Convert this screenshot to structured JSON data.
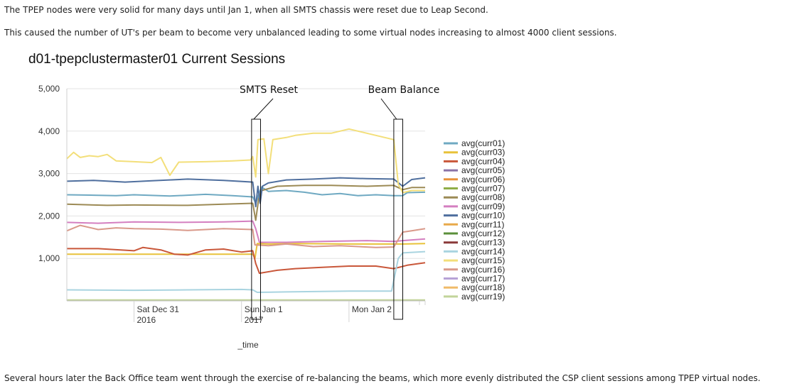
{
  "text": {
    "intro_1": "The TPEP nodes were very solid for many days until Jan 1, when all SMTS chassis were reset due to Leap Second.",
    "intro_2": "This caused the number of UT's per beam to become very unbalanced leading to some virtual nodes increasing to almost 4000 client sessions.",
    "outro": "Several hours later the Back Office team went through the exercise of re-balancing the beams, which more evenly distributed the CSP client sessions among TPEP virtual nodes."
  },
  "chart_data": {
    "type": "line",
    "title": "d01-tpepclustermaster01 Current Sessions",
    "xlabel": "_time",
    "ylabel": "",
    "ylim": [
      0,
      5000
    ],
    "xlim": [
      "2016-12-30T09:00",
      "2017-01-02T17:00"
    ],
    "y_ticks": [
      {
        "value": 1000,
        "label": "1,000"
      },
      {
        "value": 2000,
        "label": "2,000"
      },
      {
        "value": 3000,
        "label": "3,000"
      },
      {
        "value": 4000,
        "label": "4,000"
      },
      {
        "value": 5000,
        "label": "5,000"
      }
    ],
    "x_ticks": [
      {
        "value": "2016-12-31T00:00",
        "label": [
          "Sat Dec 31",
          "2016"
        ]
      },
      {
        "value": "2017-01-01T00:00",
        "label": [
          "Sun Jan 1",
          "2017"
        ]
      },
      {
        "value": "2017-01-02T00:00",
        "label": [
          "Mon Jan 2",
          ""
        ]
      }
    ],
    "grid": {
      "horizontal": true,
      "vertical": false
    },
    "legend": {
      "placement": "right"
    },
    "annotations": [
      {
        "label": "SMTS Reset",
        "x_range": [
          "2017-01-01T02:15",
          "2017-01-01T04:15"
        ]
      },
      {
        "label": "Beam Balance",
        "x_range": [
          "2017-01-02T10:00",
          "2017-01-02T12:00"
        ]
      }
    ],
    "series": [
      {
        "name": "avg(curr01)",
        "color": "#6fa9c2",
        "points": [
          [
            "2016-12-30T09:00",
            2500
          ],
          [
            "2016-12-30T15:00",
            2490
          ],
          [
            "2016-12-30T20:00",
            2480
          ],
          [
            "2016-12-31T00:00",
            2500
          ],
          [
            "2016-12-31T08:00",
            2470
          ],
          [
            "2016-12-31T16:00",
            2510
          ],
          [
            "2016-12-31T22:00",
            2480
          ],
          [
            "2017-01-01T02:30",
            2450
          ],
          [
            "2017-01-01T03:10",
            2300
          ],
          [
            "2017-01-01T03:40",
            2450
          ],
          [
            "2017-01-01T04:30",
            2680
          ],
          [
            "2017-01-01T06:00",
            2580
          ],
          [
            "2017-01-01T10:00",
            2600
          ],
          [
            "2017-01-01T14:00",
            2560
          ],
          [
            "2017-01-01T18:00",
            2500
          ],
          [
            "2017-01-01T22:00",
            2530
          ],
          [
            "2017-01-02T02:00",
            2480
          ],
          [
            "2017-01-02T06:00",
            2500
          ],
          [
            "2017-01-02T10:00",
            2480
          ],
          [
            "2017-01-02T12:00",
            2480
          ],
          [
            "2017-01-02T13:00",
            2550
          ],
          [
            "2017-01-02T17:00",
            2560
          ]
        ]
      },
      {
        "name": "avg(curr03)",
        "color": "#e8c23a",
        "points": [
          [
            "2016-12-30T09:00",
            1100
          ],
          [
            "2016-12-31T00:00",
            1100
          ],
          [
            "2017-01-01T00:00",
            1100
          ],
          [
            "2017-01-01T02:30",
            1100
          ],
          [
            "2017-01-01T03:00",
            1000
          ],
          [
            "2017-01-01T03:30",
            1350
          ],
          [
            "2017-01-01T06:00",
            1340
          ],
          [
            "2017-01-01T12:00",
            1350
          ],
          [
            "2017-01-02T00:00",
            1340
          ],
          [
            "2017-01-02T10:00",
            1340
          ],
          [
            "2017-01-02T12:00",
            1340
          ],
          [
            "2017-01-02T17:00",
            1350
          ]
        ]
      },
      {
        "name": "avg(curr04)",
        "color": "#c9573a",
        "points": [
          [
            "2016-12-30T09:00",
            1230
          ],
          [
            "2016-12-30T16:00",
            1230
          ],
          [
            "2016-12-31T00:00",
            1180
          ],
          [
            "2016-12-31T02:00",
            1260
          ],
          [
            "2016-12-31T06:00",
            1200
          ],
          [
            "2016-12-31T09:00",
            1100
          ],
          [
            "2016-12-31T12:00",
            1080
          ],
          [
            "2016-12-31T16:00",
            1200
          ],
          [
            "2016-12-31T20:00",
            1220
          ],
          [
            "2017-01-01T00:00",
            1150
          ],
          [
            "2017-01-01T02:30",
            1180
          ],
          [
            "2017-01-01T03:10",
            880
          ],
          [
            "2017-01-01T04:00",
            650
          ],
          [
            "2017-01-01T08:00",
            720
          ],
          [
            "2017-01-01T12:00",
            760
          ],
          [
            "2017-01-01T18:00",
            790
          ],
          [
            "2017-01-02T00:00",
            820
          ],
          [
            "2017-01-02T06:00",
            820
          ],
          [
            "2017-01-02T10:00",
            760
          ],
          [
            "2017-01-02T13:00",
            840
          ],
          [
            "2017-01-02T17:00",
            900
          ]
        ]
      },
      {
        "name": "avg(curr05)",
        "color": "#8a73a8",
        "points": [
          [
            "2016-12-30T09:00",
            2850
          ],
          [
            "2016-12-31T00:00",
            2850
          ],
          [
            "2017-01-01T00:00",
            2850
          ],
          [
            "2017-01-02T17:00",
            2850
          ]
        ],
        "hidden": true
      },
      {
        "name": "avg(curr06)",
        "color": "#e8923a",
        "points": [
          [
            "2016-12-30T09:00",
            50
          ],
          [
            "2017-01-02T17:00",
            50
          ]
        ],
        "hidden": true
      },
      {
        "name": "avg(curr07)",
        "color": "#8fae47",
        "points": [
          [
            "2016-12-30T09:00",
            60
          ],
          [
            "2017-01-02T17:00",
            60
          ]
        ],
        "hidden": true
      },
      {
        "name": "avg(curr08)",
        "color": "#9c8a55",
        "points": [
          [
            "2016-12-30T09:00",
            2280
          ],
          [
            "2016-12-30T18:00",
            2250
          ],
          [
            "2016-12-31T00:00",
            2260
          ],
          [
            "2016-12-31T12:00",
            2250
          ],
          [
            "2016-12-31T20:00",
            2280
          ],
          [
            "2017-01-01T02:30",
            2300
          ],
          [
            "2017-01-01T03:10",
            1900
          ],
          [
            "2017-01-01T03:50",
            2400
          ],
          [
            "2017-01-01T04:30",
            2600
          ],
          [
            "2017-01-01T08:00",
            2700
          ],
          [
            "2017-01-01T14:00",
            2720
          ],
          [
            "2017-01-01T20:00",
            2720
          ],
          [
            "2017-01-02T04:00",
            2700
          ],
          [
            "2017-01-02T10:00",
            2720
          ],
          [
            "2017-01-02T12:00",
            2620
          ],
          [
            "2017-01-02T14:00",
            2670
          ],
          [
            "2017-01-02T17:00",
            2670
          ]
        ]
      },
      {
        "name": "avg(curr09)",
        "color": "#d47fc0",
        "points": [
          [
            "2016-12-30T09:00",
            1850
          ],
          [
            "2016-12-30T16:00",
            1830
          ],
          [
            "2016-12-31T00:00",
            1860
          ],
          [
            "2016-12-31T10:00",
            1850
          ],
          [
            "2016-12-31T20:00",
            1860
          ],
          [
            "2017-01-01T02:30",
            1880
          ],
          [
            "2017-01-01T03:10",
            1700
          ],
          [
            "2017-01-01T04:00",
            1380
          ],
          [
            "2017-01-01T10:00",
            1380
          ],
          [
            "2017-01-01T18:00",
            1400
          ],
          [
            "2017-01-02T04:00",
            1420
          ],
          [
            "2017-01-02T10:00",
            1400
          ],
          [
            "2017-01-02T12:00",
            1420
          ],
          [
            "2017-01-02T17:00",
            1460
          ]
        ]
      },
      {
        "name": "avg(curr10)",
        "color": "#4f6f9e",
        "points": [
          [
            "2016-12-30T09:00",
            2820
          ],
          [
            "2016-12-30T15:00",
            2840
          ],
          [
            "2016-12-30T22:00",
            2800
          ],
          [
            "2016-12-31T04:00",
            2830
          ],
          [
            "2016-12-31T12:00",
            2870
          ],
          [
            "2016-12-31T20:00",
            2840
          ],
          [
            "2017-01-01T02:30",
            2800
          ],
          [
            "2017-01-01T03:10",
            2220
          ],
          [
            "2017-01-01T03:40",
            2700
          ],
          [
            "2017-01-01T04:10",
            2300
          ],
          [
            "2017-01-01T04:40",
            2700
          ],
          [
            "2017-01-01T06:00",
            2780
          ],
          [
            "2017-01-01T10:00",
            2850
          ],
          [
            "2017-01-01T16:00",
            2870
          ],
          [
            "2017-01-01T22:00",
            2900
          ],
          [
            "2017-01-02T04:00",
            2880
          ],
          [
            "2017-01-02T10:00",
            2870
          ],
          [
            "2017-01-02T12:00",
            2700
          ],
          [
            "2017-01-02T14:00",
            2860
          ],
          [
            "2017-01-02T17:00",
            2900
          ]
        ]
      },
      {
        "name": "avg(curr11)",
        "color": "#e8a94a",
        "points": [
          [
            "2016-12-30T09:00",
            70
          ],
          [
            "2017-01-02T17:00",
            70
          ]
        ],
        "hidden": true
      },
      {
        "name": "avg(curr12)",
        "color": "#5b8f3a",
        "points": [
          [
            "2016-12-30T09:00",
            80
          ],
          [
            "2017-01-02T17:00",
            80
          ]
        ],
        "hidden": true
      },
      {
        "name": "avg(curr13)",
        "color": "#8b3a3a",
        "points": [
          [
            "2016-12-30T09:00",
            1200
          ],
          [
            "2016-12-30T16:00",
            1210
          ],
          [
            "2016-12-31T00:00",
            1190
          ],
          [
            "2016-12-31T02:00",
            1230
          ],
          [
            "2016-12-31T08:00",
            1180
          ],
          [
            "2016-12-31T12:00",
            1170
          ],
          [
            "2016-12-31T20:00",
            1200
          ],
          [
            "2017-01-01T02:30",
            1160
          ]
        ],
        "hidden": true
      },
      {
        "name": "avg(curr14)",
        "color": "#a9d4e0",
        "points": [
          [
            "2016-12-30T09:00",
            260
          ],
          [
            "2016-12-31T00:00",
            250
          ],
          [
            "2016-12-31T12:00",
            260
          ],
          [
            "2017-01-01T00:00",
            270
          ],
          [
            "2017-01-01T02:30",
            260
          ],
          [
            "2017-01-01T03:30",
            200
          ],
          [
            "2017-01-01T10:00",
            210
          ],
          [
            "2017-01-02T00:00",
            230
          ],
          [
            "2017-01-02T09:30",
            230
          ],
          [
            "2017-01-02T11:00",
            1000
          ],
          [
            "2017-01-02T12:00",
            1130
          ],
          [
            "2017-01-02T17:00",
            1160
          ]
        ]
      },
      {
        "name": "avg(curr15)",
        "color": "#f3df7a",
        "points": [
          [
            "2016-12-30T09:00",
            3350
          ],
          [
            "2016-12-30T10:30",
            3500
          ],
          [
            "2016-12-30T12:00",
            3380
          ],
          [
            "2016-12-30T14:00",
            3420
          ],
          [
            "2016-12-30T16:00",
            3400
          ],
          [
            "2016-12-30T18:00",
            3450
          ],
          [
            "2016-12-30T20:00",
            3300
          ],
          [
            "2016-12-31T00:00",
            3280
          ],
          [
            "2016-12-31T04:00",
            3260
          ],
          [
            "2016-12-31T06:00",
            3380
          ],
          [
            "2016-12-31T08:00",
            2960
          ],
          [
            "2016-12-31T10:00",
            3270
          ],
          [
            "2016-12-31T16:00",
            3280
          ],
          [
            "2016-12-31T22:00",
            3300
          ],
          [
            "2017-01-01T02:00",
            3320
          ],
          [
            "2017-01-01T02:30",
            3400
          ],
          [
            "2017-01-01T03:10",
            2920
          ],
          [
            "2017-01-01T03:40",
            3800
          ],
          [
            "2017-01-01T05:00",
            3820
          ],
          [
            "2017-01-01T06:00",
            3000
          ],
          [
            "2017-01-01T07:00",
            3800
          ],
          [
            "2017-01-01T10:00",
            3850
          ],
          [
            "2017-01-01T12:00",
            3900
          ],
          [
            "2017-01-01T16:00",
            3950
          ],
          [
            "2017-01-01T20:00",
            3950
          ],
          [
            "2017-01-02T00:00",
            4050
          ],
          [
            "2017-01-02T04:00",
            3950
          ],
          [
            "2017-01-02T08:00",
            3850
          ],
          [
            "2017-01-02T10:00",
            3800
          ],
          [
            "2017-01-02T11:00",
            2750
          ],
          [
            "2017-01-02T12:00",
            2550
          ],
          [
            "2017-01-02T14:00",
            2600
          ],
          [
            "2017-01-02T17:00",
            2600
          ]
        ]
      },
      {
        "name": "avg(curr16)",
        "color": "#d9998a",
        "points": [
          [
            "2016-12-30T09:00",
            1650
          ],
          [
            "2016-12-30T12:00",
            1780
          ],
          [
            "2016-12-30T16:00",
            1680
          ],
          [
            "2016-12-30T20:00",
            1720
          ],
          [
            "2016-12-31T00:00",
            1700
          ],
          [
            "2016-12-31T06:00",
            1690
          ],
          [
            "2016-12-31T12:00",
            1660
          ],
          [
            "2016-12-31T20:00",
            1700
          ],
          [
            "2017-01-01T02:30",
            1680
          ],
          [
            "2017-01-01T03:00",
            1320
          ],
          [
            "2017-01-01T06:00",
            1300
          ],
          [
            "2017-01-01T10:00",
            1340
          ],
          [
            "2017-01-01T16:00",
            1280
          ],
          [
            "2017-01-01T22:00",
            1300
          ],
          [
            "2017-01-02T06:00",
            1260
          ],
          [
            "2017-01-02T10:00",
            1270
          ],
          [
            "2017-01-02T12:00",
            1620
          ],
          [
            "2017-01-02T14:00",
            1650
          ],
          [
            "2017-01-02T17:00",
            1700
          ]
        ]
      },
      {
        "name": "avg(curr17)",
        "color": "#b7a2d6",
        "points": [
          [
            "2016-12-30T09:00",
            90
          ],
          [
            "2017-01-02T17:00",
            90
          ]
        ],
        "hidden": true
      },
      {
        "name": "avg(curr18)",
        "color": "#f0bb6a",
        "points": [
          [
            "2016-12-30T09:00",
            100
          ],
          [
            "2017-01-02T17:00",
            100
          ]
        ],
        "hidden": true
      },
      {
        "name": "avg(curr19)",
        "color": "#c2d49a",
        "points": [
          [
            "2016-12-30T09:00",
            20
          ],
          [
            "2017-01-02T17:00",
            20
          ]
        ]
      }
    ]
  }
}
